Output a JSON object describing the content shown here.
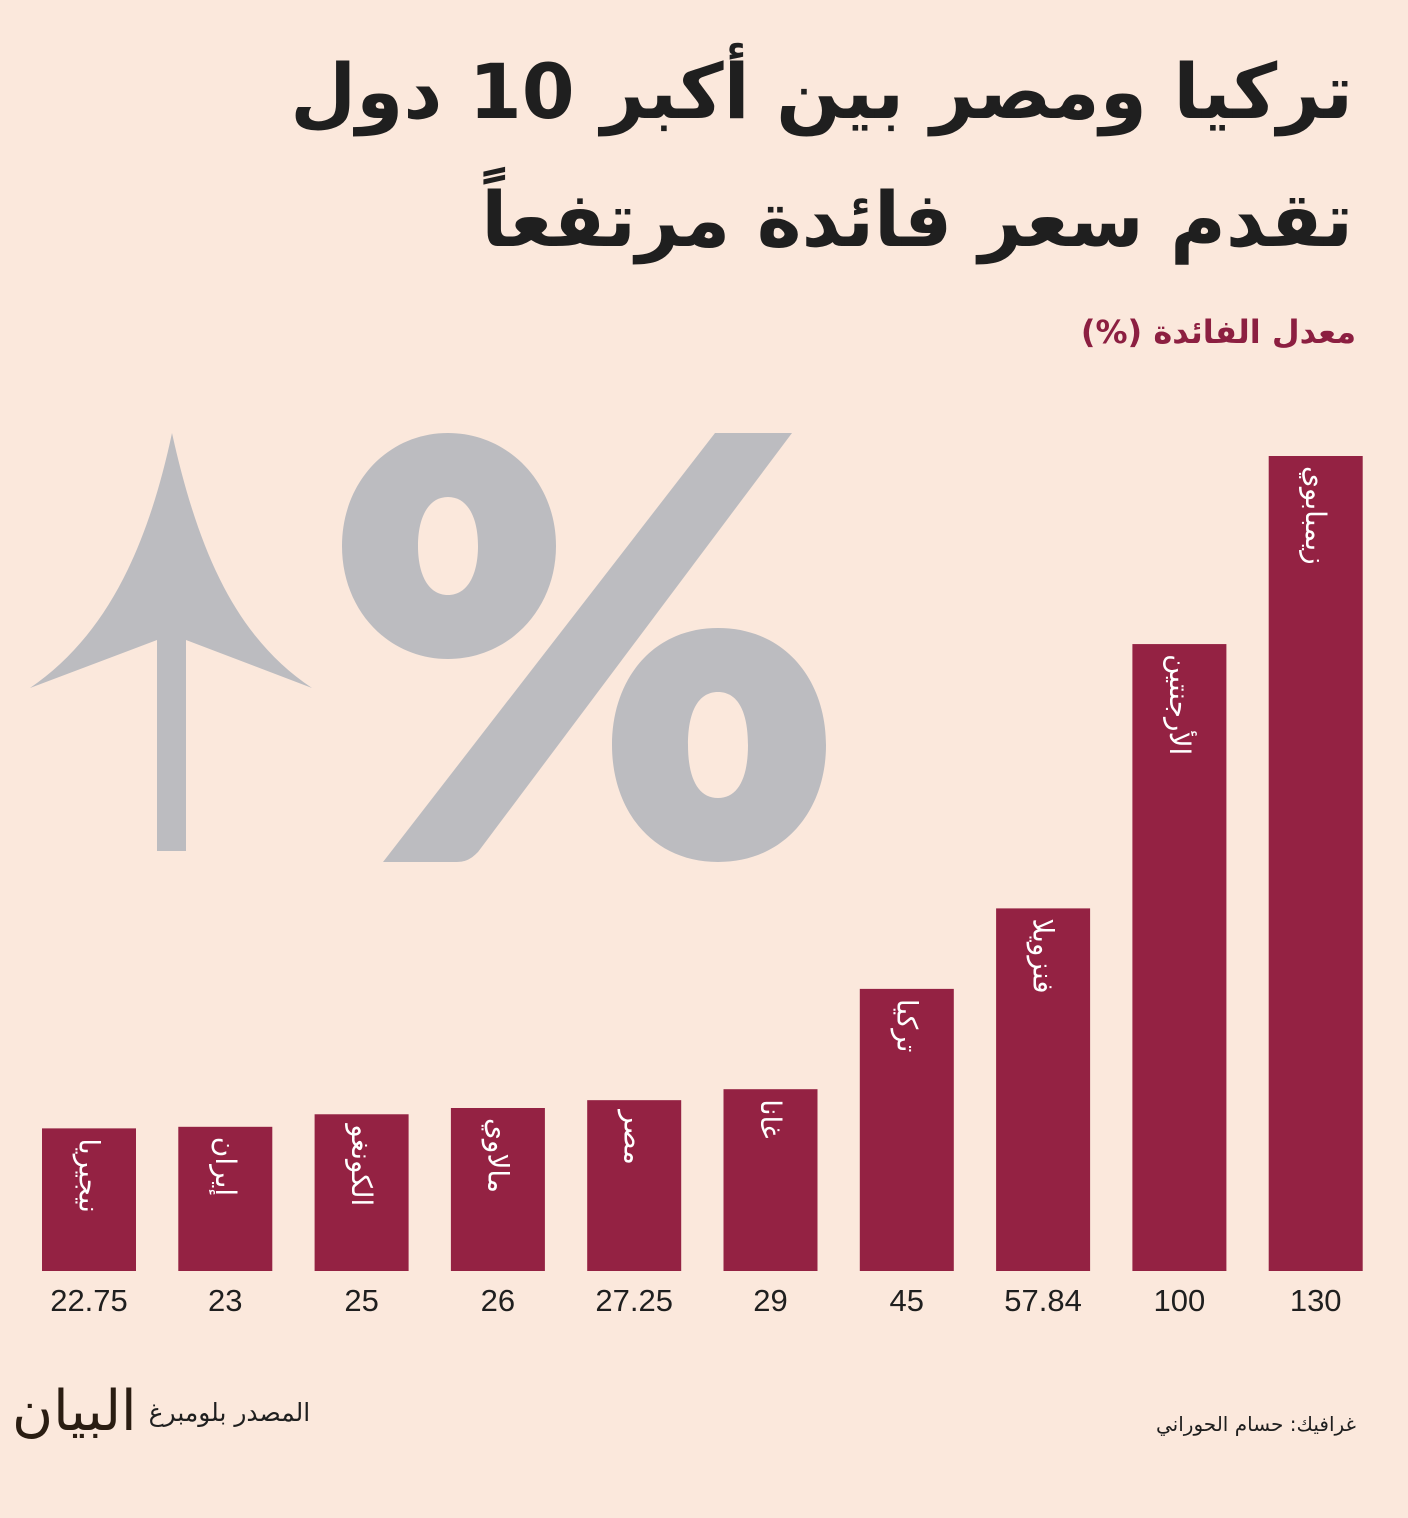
{
  "chart_data": {
    "type": "bar",
    "title_lines": [
      "تركيا ومصر بين أكبر 10 دول",
      "تقدم سعر فائدة مرتفعاً"
    ],
    "ylabel": "معدل الفائدة (%)",
    "categories": [
      "نيجيريا",
      "إيران",
      "الكونغو",
      "مالاوي",
      "مصر",
      "غانا",
      "تركيا",
      "فنزويلا",
      "الأرجنتين",
      "زيمبابوي"
    ],
    "value_labels": [
      "22.75",
      "23",
      "25",
      "26",
      "27.25",
      "29",
      "45",
      "57.84",
      "100",
      "130"
    ],
    "values": [
      22.75,
      23,
      25,
      26,
      27.25,
      29,
      45,
      57.84,
      100,
      130
    ],
    "ylim": [
      0,
      130
    ],
    "grid": false,
    "colors": {
      "bar": "#942243",
      "background": "#fbe8dc",
      "decoration": "#bcbcc0",
      "accent_text": "#8c1f41",
      "text": "#1f1f1f"
    }
  },
  "decoration": {
    "icons": [
      "up-arrow-icon",
      "percent-icon"
    ]
  },
  "footer": {
    "logo": "البيان",
    "source": "المصدر بلومبرغ",
    "credit": "غرافيك: حسام الحوراني"
  }
}
